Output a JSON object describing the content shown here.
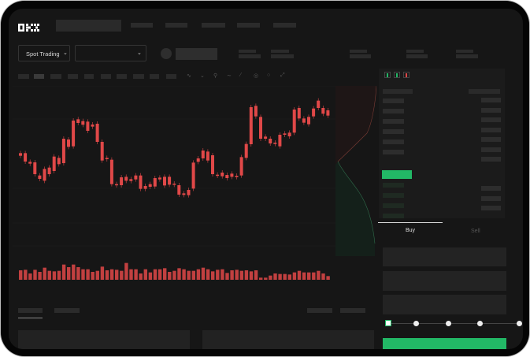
{
  "brand": {
    "logo": "OKX"
  },
  "toolbar": {
    "market_type": "Spot Trading",
    "chevron_icon": "chevron-down-icon"
  },
  "trade": {
    "buy_tab": "Buy",
    "sell_tab": "Sell",
    "leverage_steps": 5,
    "leverage_selected": 0
  },
  "colors": {
    "up": "#22b866",
    "down": "#e04848",
    "background": "#161616"
  },
  "chart_data": {
    "type": "candlestick",
    "candles": [
      [
        170,
        160
      ],
      [
        170,
        138
      ],
      [
        137,
        130
      ],
      [
        135,
        90
      ],
      [
        85,
        72
      ],
      [
        110,
        65
      ],
      [
        115,
        90
      ],
      [
        157,
        102
      ],
      [
        152,
        128
      ],
      [
        225,
        132
      ],
      [
        222,
        194
      ],
      [
        294,
        196
      ],
      [
        299,
        285
      ],
      [
        292,
        278
      ],
      [
        290,
        255
      ],
      [
        279,
        271
      ],
      [
        282,
        213
      ],
      [
        213,
        142
      ],
      [
        152,
        147
      ],
      [
        145,
        52
      ],
      [
        52,
        48
      ],
      [
        78,
        48
      ],
      [
        80,
        65
      ],
      [
        71,
        64
      ],
      [
        85,
        70
      ],
      [
        85,
        34
      ],
      [
        45,
        34
      ],
      [
        52,
        42
      ],
      [
        75,
        43
      ],
      [
        77,
        70
      ],
      [
        80,
        47
      ],
      [
        80,
        50
      ],
      [
        54,
        50
      ],
      [
        48,
        12
      ],
      [
        17,
        11
      ],
      [
        30,
        10
      ],
      [
        134,
        35
      ],
      [
        150,
        137
      ],
      [
        180,
        150
      ],
      [
        176,
        142
      ],
      [
        162,
        90
      ],
      [
        88,
        84
      ],
      [
        96,
        82
      ],
      [
        87,
        75
      ],
      [
        92,
        80
      ],
      [
        84,
        79
      ],
      [
        155,
        85
      ],
      [
        205,
        152
      ],
      [
        345,
        204
      ],
      [
        350,
        310
      ],
      [
        308,
        225
      ],
      [
        233,
        225
      ],
      [
        225,
        207
      ],
      [
        210,
        205
      ],
      [
        240,
        196
      ],
      [
        245,
        240
      ],
      [
        248,
        234
      ],
      [
        336,
        248
      ],
      [
        342,
        302
      ],
      [
        302,
        286
      ],
      [
        308,
        280
      ],
      [
        340,
        310
      ],
      [
        370,
        342
      ],
      [
        342,
        320
      ],
      [
        333,
        313
      ]
    ],
    "volumes": [
      36,
      38,
      24,
      38,
      30,
      46,
      34,
      32,
      34,
      58,
      48,
      58,
      48,
      40,
      40,
      30,
      34,
      50,
      36,
      40,
      38,
      34,
      64,
      40,
      40,
      24,
      40,
      28,
      40,
      40,
      44,
      30,
      34,
      44,
      40,
      34,
      34,
      40,
      46,
      40,
      32,
      38,
      40,
      26,
      36,
      38,
      34,
      36,
      32,
      36,
      8,
      8,
      16,
      24,
      22,
      22,
      20,
      28,
      34,
      28,
      28,
      28,
      34,
      24,
      14
    ]
  }
}
